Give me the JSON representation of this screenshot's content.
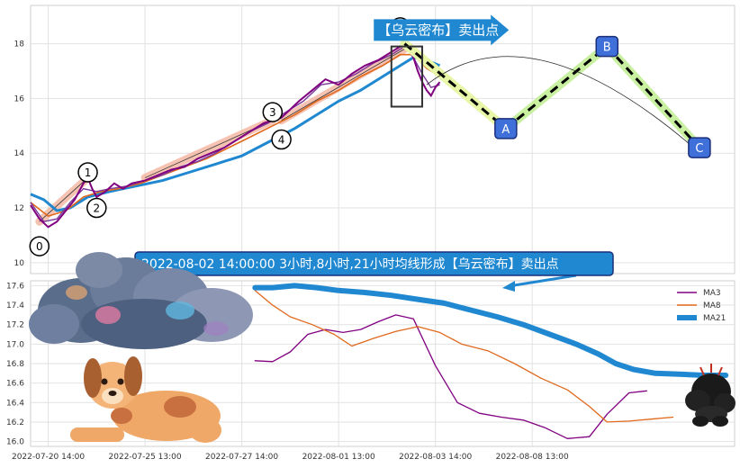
{
  "chart_data": [
    {
      "type": "line",
      "panel": "price",
      "ylim": [
        9.6,
        19.4
      ],
      "yticks": [
        "10",
        "12",
        "14",
        "16",
        "18"
      ],
      "grid": true,
      "price_path": [
        [
          0,
          12.1
        ],
        [
          2,
          11.6
        ],
        [
          4,
          11.3
        ],
        [
          6,
          11.5
        ],
        [
          8,
          11.9
        ],
        [
          10,
          12.3
        ],
        [
          12,
          12.9
        ],
        [
          13,
          13.1
        ],
        [
          14,
          12.7
        ],
        [
          15,
          12.4
        ],
        [
          17,
          12.6
        ],
        [
          19,
          12.9
        ],
        [
          21,
          12.7
        ],
        [
          23,
          12.9
        ],
        [
          26,
          13.0
        ],
        [
          29,
          13.2
        ],
        [
          32,
          13.4
        ],
        [
          35,
          13.5
        ],
        [
          38,
          13.8
        ],
        [
          41,
          14.0
        ],
        [
          44,
          14.2
        ],
        [
          47,
          14.5
        ],
        [
          50,
          14.8
        ],
        [
          53,
          15.1
        ],
        [
          55,
          15.2
        ],
        [
          57,
          15.3
        ],
        [
          59,
          15.6
        ],
        [
          61,
          15.9
        ],
        [
          64,
          16.3
        ],
        [
          67,
          16.7
        ],
        [
          70,
          16.5
        ],
        [
          73,
          16.9
        ],
        [
          76,
          17.2
        ],
        [
          79,
          17.4
        ],
        [
          82,
          17.7
        ],
        [
          84,
          17.9
        ],
        [
          85,
          18.0
        ],
        [
          86,
          17.8
        ],
        [
          87,
          17.5
        ],
        [
          88,
          17.0
        ],
        [
          89,
          16.6
        ],
        [
          90,
          16.3
        ],
        [
          91,
          16.1
        ],
        [
          92,
          16.4
        ],
        [
          93,
          16.6
        ]
      ],
      "ma3_path": [
        [
          0,
          12.2
        ],
        [
          3,
          11.5
        ],
        [
          6,
          11.6
        ],
        [
          9,
          12.2
        ],
        [
          12,
          12.7
        ],
        [
          15,
          12.6
        ],
        [
          18,
          12.7
        ],
        [
          22,
          12.8
        ],
        [
          26,
          13.0
        ],
        [
          30,
          13.2
        ],
        [
          34,
          13.5
        ],
        [
          38,
          13.7
        ],
        [
          42,
          14.0
        ],
        [
          46,
          14.4
        ],
        [
          50,
          14.8
        ],
        [
          54,
          15.1
        ],
        [
          58,
          15.5
        ],
        [
          62,
          15.9
        ],
        [
          66,
          16.5
        ],
        [
          70,
          16.6
        ],
        [
          74,
          16.9
        ],
        [
          78,
          17.3
        ],
        [
          82,
          17.6
        ],
        [
          85,
          17.9
        ],
        [
          87,
          17.5
        ],
        [
          89,
          16.9
        ],
        [
          91,
          16.4
        ],
        [
          93,
          16.5
        ]
      ],
      "ma8_path": [
        [
          0,
          12.2
        ],
        [
          4,
          11.7
        ],
        [
          8,
          11.9
        ],
        [
          12,
          12.4
        ],
        [
          16,
          12.6
        ],
        [
          20,
          12.7
        ],
        [
          25,
          12.9
        ],
        [
          30,
          13.2
        ],
        [
          35,
          13.5
        ],
        [
          40,
          13.8
        ],
        [
          45,
          14.2
        ],
        [
          50,
          14.6
        ],
        [
          55,
          15.0
        ],
        [
          60,
          15.4
        ],
        [
          65,
          15.9
        ],
        [
          70,
          16.3
        ],
        [
          75,
          16.8
        ],
        [
          80,
          17.2
        ],
        [
          84,
          17.6
        ],
        [
          87,
          17.6
        ],
        [
          90,
          17.1
        ],
        [
          93,
          16.8
        ]
      ],
      "ma21_path": [
        [
          0,
          12.5
        ],
        [
          3,
          12.3
        ],
        [
          6,
          11.9
        ],
        [
          9,
          12.0
        ],
        [
          13,
          12.4
        ],
        [
          18,
          12.6
        ],
        [
          24,
          12.8
        ],
        [
          30,
          13.0
        ],
        [
          36,
          13.3
        ],
        [
          42,
          13.6
        ],
        [
          48,
          13.9
        ],
        [
          54,
          14.4
        ],
        [
          60,
          14.9
        ],
        [
          65,
          15.4
        ],
        [
          70,
          15.9
        ],
        [
          75,
          16.3
        ],
        [
          80,
          16.8
        ],
        [
          84,
          17.2
        ],
        [
          87,
          17.5
        ],
        [
          90,
          17.4
        ],
        [
          93,
          17.2
        ]
      ],
      "channel_segments": [
        {
          "from": [
            2,
            11.5
          ],
          "to": [
            13,
            13.1
          ]
        },
        {
          "from": [
            26,
            13.1
          ],
          "to": [
            55,
            15.2
          ]
        },
        {
          "from": [
            57,
            15.2
          ],
          "to": [
            86,
            17.9
          ]
        }
      ],
      "wave_points": [
        {
          "label": "0",
          "x": 2,
          "y": 10.6
        },
        {
          "label": "1",
          "x": 13,
          "y": 13.3
        },
        {
          "label": "2",
          "x": 15,
          "y": 12.0
        },
        {
          "label": "3",
          "x": 55,
          "y": 15.5
        },
        {
          "label": "4",
          "x": 57,
          "y": 14.5
        },
        {
          "label": "5",
          "x": 84,
          "y": 18.6
        }
      ],
      "forecast": [
        {
          "label": "",
          "x": 85,
          "y": 18.0
        },
        {
          "label": "A",
          "x": 108,
          "y": 14.9
        },
        {
          "label": "B",
          "x": 131,
          "y": 17.9
        },
        {
          "label": "C",
          "x": 152,
          "y": 14.2
        }
      ],
      "arc": {
        "from": [
          90,
          16.5
        ],
        "peak": [
          113,
          17.6
        ],
        "to": [
          150,
          14.3
        ]
      },
      "box": {
        "x0": 82,
        "x1": 89,
        "y0": 15.7,
        "y1": 17.9
      },
      "banner": "【乌云密布】卖出点",
      "banner_x": 78,
      "banner_y": 18.5
    },
    {
      "type": "line",
      "panel": "ma",
      "ylim": [
        15.95,
        17.65
      ],
      "yticks": [
        "16.0",
        "16.2",
        "16.4",
        "16.6",
        "16.8",
        "17.0",
        "17.2",
        "17.4",
        "17.6"
      ],
      "grid": true,
      "xticks": [
        "2022-07-20 14:00",
        "2022-07-25 13:00",
        "2022-07-27 14:00",
        "2022-08-01 13:00",
        "2022-08-03 14:00",
        "2022-08-08 13:00"
      ],
      "xtick_pos": [
        4,
        26,
        48,
        70,
        92,
        114
      ],
      "series": [
        {
          "name": "MA3",
          "color": "#800080",
          "width": 1.3,
          "points": [
            [
              51,
              16.83
            ],
            [
              55,
              16.82
            ],
            [
              59,
              16.92
            ],
            [
              63,
              17.1
            ],
            [
              67,
              17.15
            ],
            [
              71,
              17.12
            ],
            [
              75,
              17.15
            ],
            [
              79,
              17.23
            ],
            [
              83,
              17.3
            ],
            [
              87,
              17.26
            ],
            [
              92,
              16.78
            ],
            [
              97,
              16.4
            ],
            [
              102,
              16.29
            ],
            [
              107,
              16.25
            ],
            [
              112,
              16.22
            ],
            [
              117,
              16.14
            ],
            [
              122,
              16.03
            ],
            [
              127,
              16.05
            ],
            [
              131,
              16.28
            ],
            [
              136,
              16.5
            ],
            [
              140,
              16.52
            ]
          ]
        },
        {
          "name": "MA8",
          "color": "#e0691d",
          "width": 1.3,
          "points": [
            [
              51,
              17.55
            ],
            [
              55,
              17.4
            ],
            [
              59,
              17.28
            ],
            [
              64,
              17.2
            ],
            [
              69,
              17.1
            ],
            [
              73,
              16.98
            ],
            [
              78,
              17.06
            ],
            [
              83,
              17.13
            ],
            [
              88,
              17.18
            ],
            [
              93,
              17.12
            ],
            [
              98,
              17.0
            ],
            [
              104,
              16.93
            ],
            [
              110,
              16.8
            ],
            [
              116,
              16.65
            ],
            [
              122,
              16.53
            ],
            [
              127,
              16.36
            ],
            [
              131,
              16.2
            ],
            [
              136,
              16.21
            ],
            [
              141,
              16.23
            ],
            [
              146,
              16.25
            ]
          ]
        },
        {
          "name": "MA21",
          "color": "#1f88d0",
          "width": 6,
          "points": [
            [
              51,
              17.58
            ],
            [
              55,
              17.58
            ],
            [
              60,
              17.6
            ],
            [
              65,
              17.58
            ],
            [
              70,
              17.55
            ],
            [
              76,
              17.53
            ],
            [
              82,
              17.5
            ],
            [
              88,
              17.46
            ],
            [
              94,
              17.42
            ],
            [
              100,
              17.35
            ],
            [
              106,
              17.28
            ],
            [
              112,
              17.2
            ],
            [
              118,
              17.1
            ],
            [
              124,
              17.0
            ],
            [
              129,
              16.9
            ],
            [
              133,
              16.8
            ],
            [
              137,
              16.74
            ],
            [
              142,
              16.7
            ],
            [
              148,
              16.69
            ],
            [
              153,
              16.68
            ],
            [
              158,
              16.68
            ]
          ]
        }
      ],
      "callout": "2022-08-02 14:00:00 3小时,8小时,21小时均线形成【乌云密布】卖出点",
      "legend_position": "top-right"
    }
  ],
  "colors": {
    "banner_bg": "#1f88d0",
    "point_box": "#3f6fd8",
    "price": "#800080",
    "ma8": "#e0691d",
    "ma21": "#1f88d0",
    "channel": "#f4b09a",
    "forecast_up": "#c8f0a0",
    "forecast_down": "#e8f6a8"
  },
  "decorations": [
    "storm-cloud-icon",
    "dog-icon",
    "dark-cloud-icon"
  ]
}
